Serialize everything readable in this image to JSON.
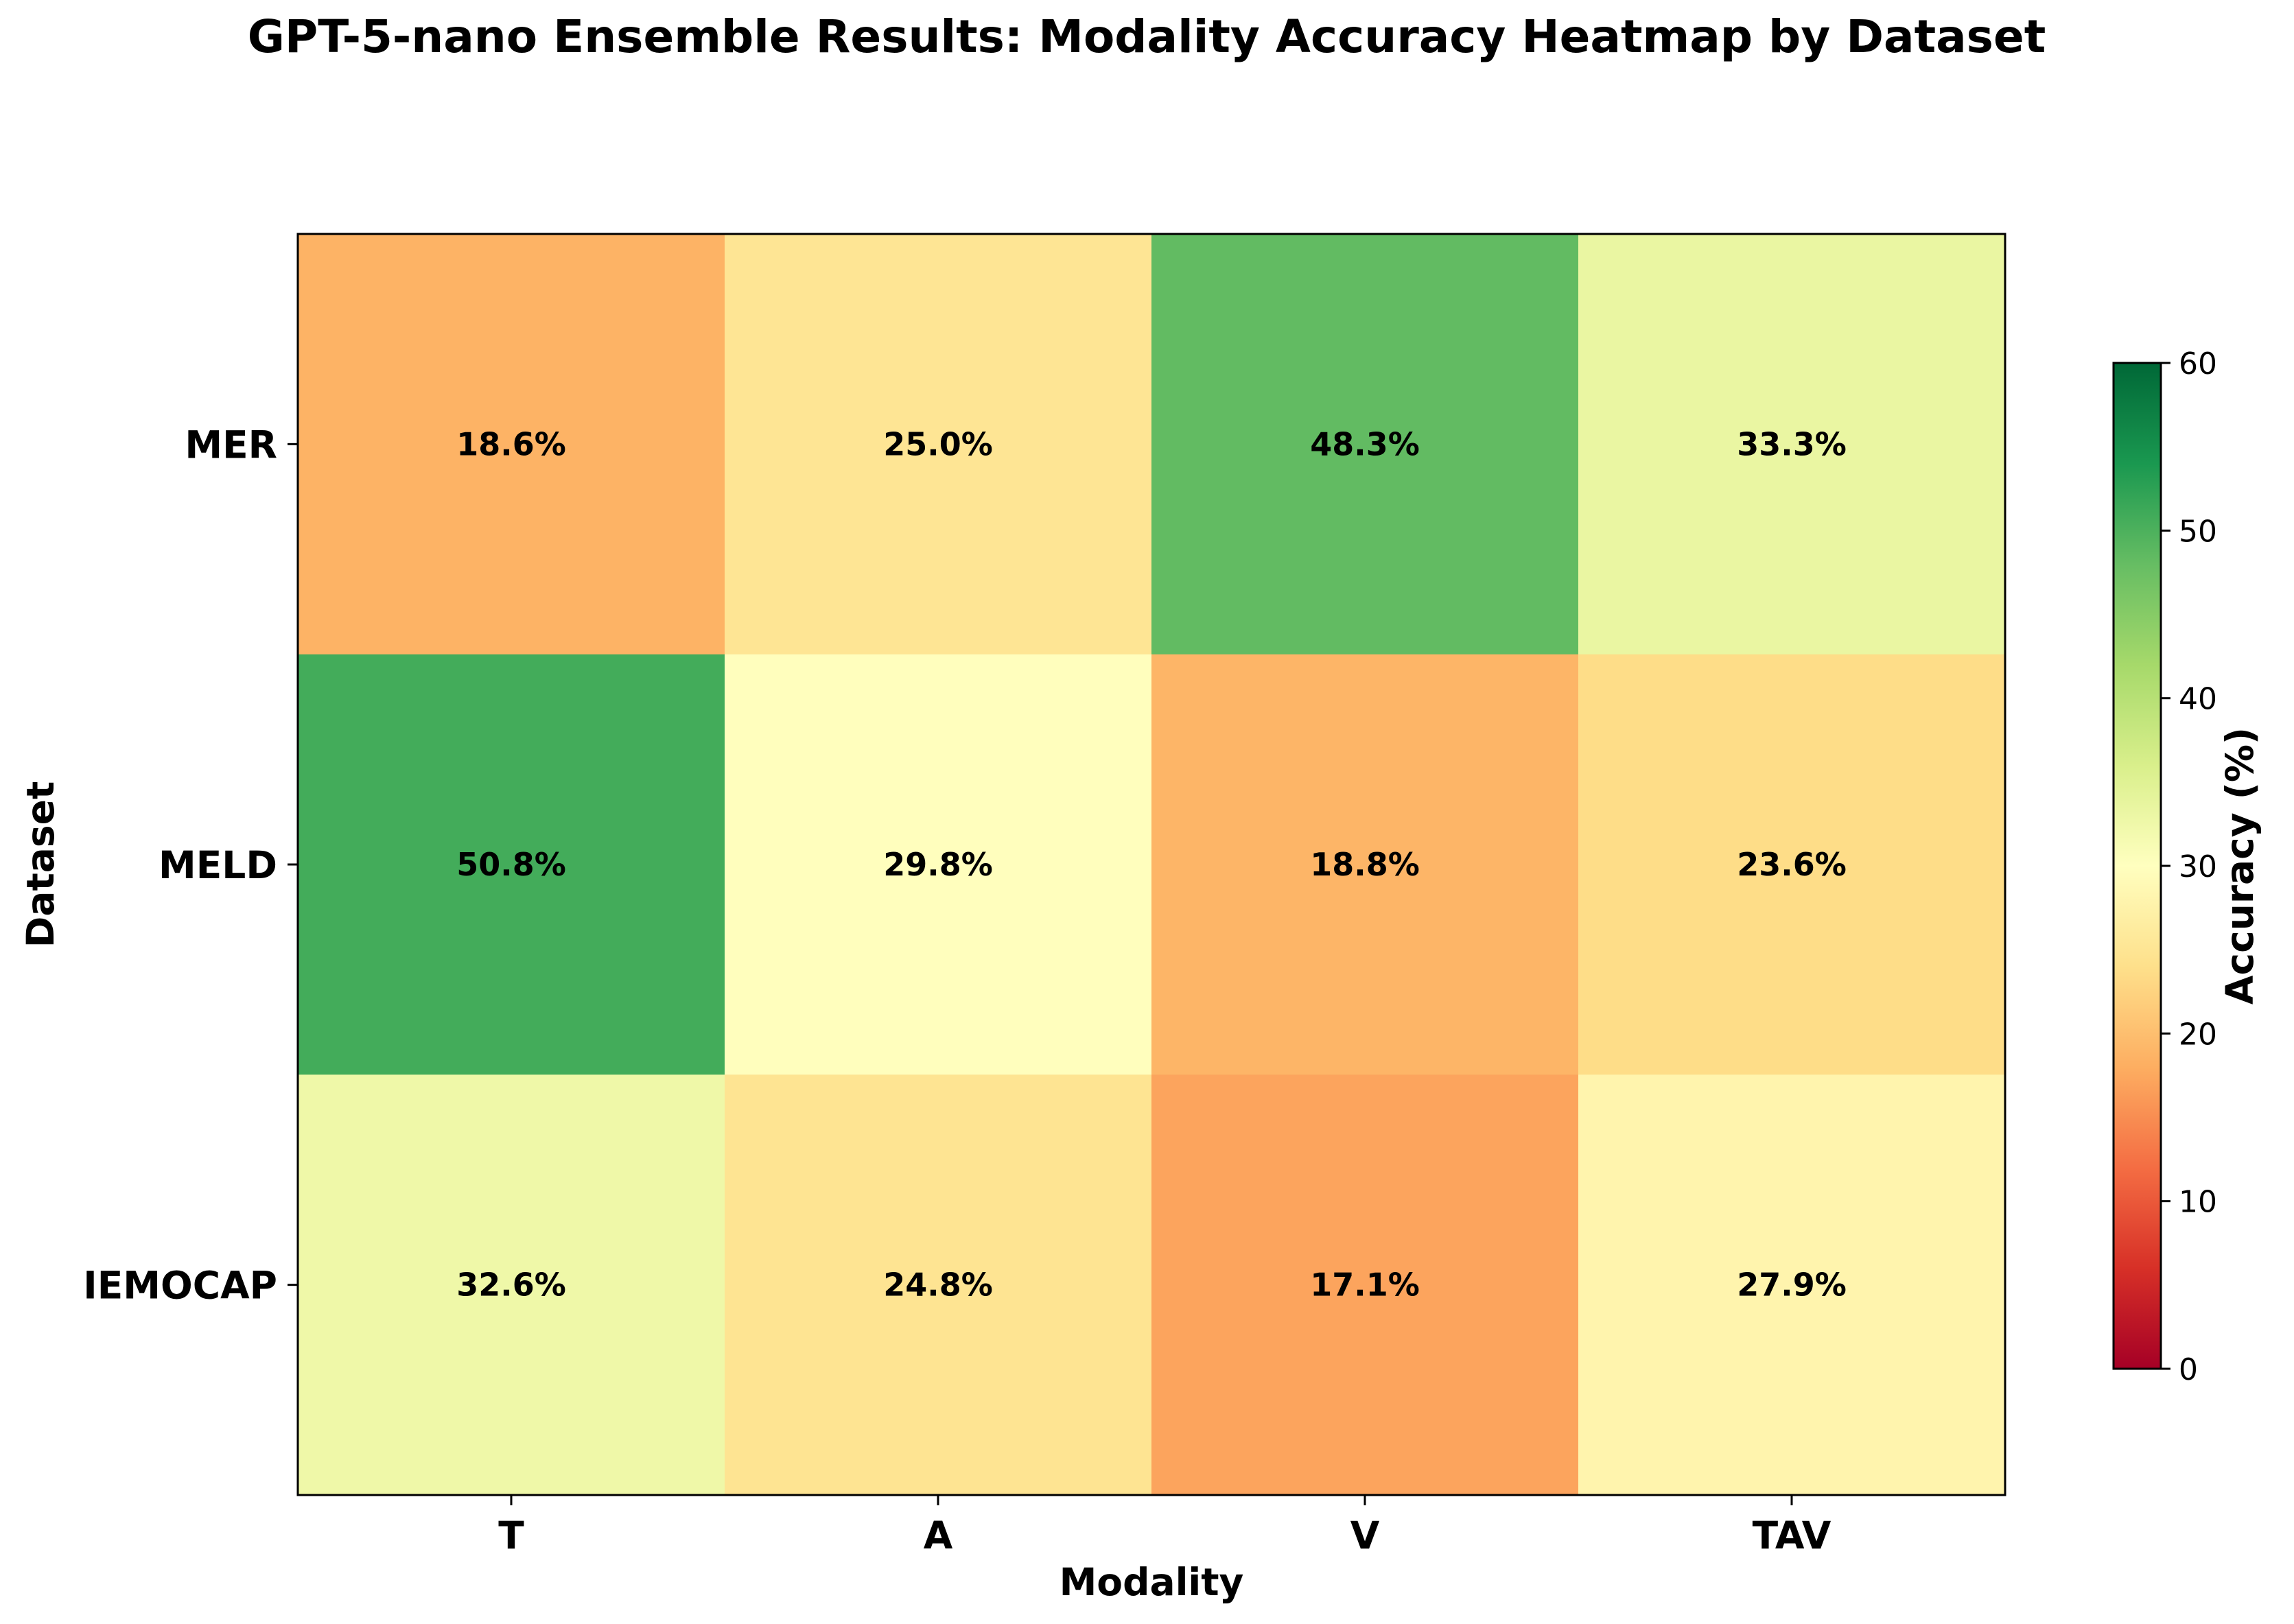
{
  "chart_data": {
    "type": "heatmap",
    "title": "GPT-5-nano Ensemble Results: Modality Accuracy Heatmap by Dataset",
    "xlabel": "Modality",
    "ylabel": "Dataset",
    "x_categories": [
      "T",
      "A",
      "V",
      "TAV"
    ],
    "y_categories": [
      "MER",
      "MELD",
      "IEMOCAP"
    ],
    "values": [
      [
        18.6,
        25.0,
        48.3,
        33.3
      ],
      [
        50.8,
        29.8,
        18.8,
        23.6
      ],
      [
        32.6,
        24.8,
        17.1,
        27.9
      ]
    ],
    "value_labels": [
      [
        "18.6%",
        "25.0%",
        "48.3%",
        "33.3%"
      ],
      [
        "50.8%",
        "29.8%",
        "18.8%",
        "23.6%"
      ],
      [
        "32.6%",
        "24.8%",
        "17.1%",
        "27.9%"
      ]
    ],
    "colorbar": {
      "label": "Accuracy (%)",
      "range": [
        0,
        60
      ],
      "ticks": [
        0,
        10,
        20,
        30,
        40,
        50,
        60
      ],
      "colormap": "RdYlGn"
    }
  }
}
